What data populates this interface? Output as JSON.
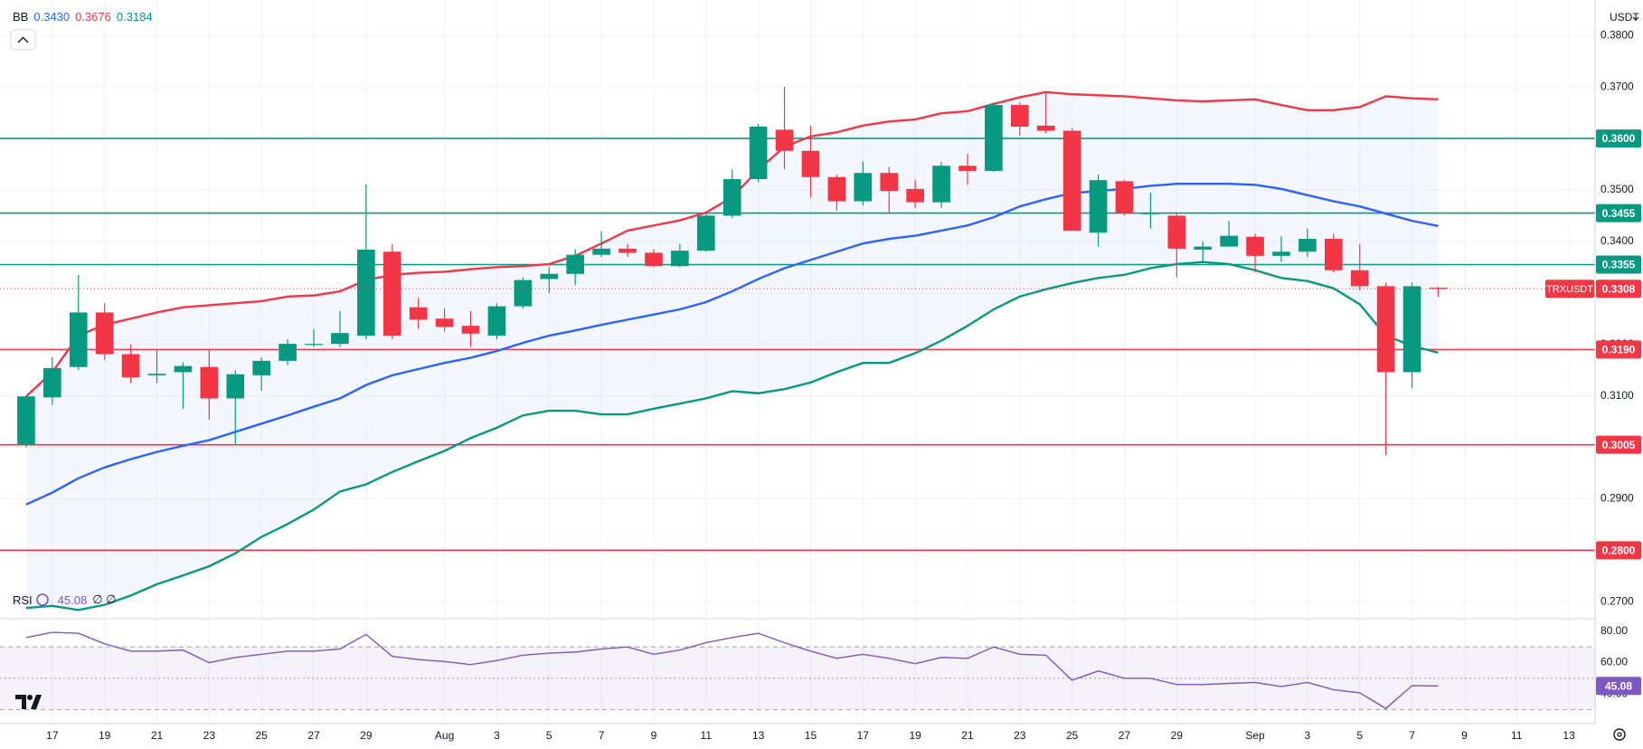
{
  "chart_data": {
    "type": "candlestick",
    "x": [
      "07-16",
      "07-17",
      "07-18",
      "07-19",
      "07-20",
      "07-21",
      "07-22",
      "07-23",
      "07-24",
      "07-25",
      "07-26",
      "07-27",
      "07-28",
      "07-29",
      "07-30",
      "07-31",
      "08-01",
      "08-02",
      "08-03",
      "08-04",
      "08-05",
      "08-06",
      "08-07",
      "08-08",
      "08-09",
      "08-10",
      "08-11",
      "08-12",
      "08-13",
      "08-14",
      "08-15",
      "08-16",
      "08-17",
      "08-18",
      "08-19",
      "08-20",
      "08-21",
      "08-22",
      "08-23",
      "08-24",
      "08-25",
      "08-26",
      "08-27",
      "08-28",
      "08-29",
      "08-30",
      "08-31",
      "09-01",
      "09-02",
      "09-03",
      "09-04",
      "09-05",
      "09-06",
      "09-07",
      "09-08"
    ],
    "open": [
      0.3005,
      0.3097,
      0.3156,
      0.3262,
      0.3181,
      0.314,
      0.3146,
      0.3156,
      0.3095,
      0.314,
      0.3168,
      0.32,
      0.3201,
      0.3217,
      0.338,
      0.3272,
      0.325,
      0.3236,
      0.3217,
      0.3274,
      0.3327,
      0.3337,
      0.3374,
      0.3386,
      0.3378,
      0.3352,
      0.3382,
      0.345,
      0.3521,
      0.3617,
      0.3576,
      0.3525,
      0.3478,
      0.3533,
      0.3502,
      0.3476,
      0.3547,
      0.3537,
      0.3665,
      0.3625,
      0.3615,
      0.3417,
      0.3517,
      0.3454,
      0.345,
      0.3384,
      0.339,
      0.3409,
      0.3372,
      0.338,
      0.3405,
      0.3344,
      0.3313,
      0.3146,
      0.331
    ],
    "high": [
      0.31,
      0.3175,
      0.3335,
      0.328,
      0.32,
      0.319,
      0.3165,
      0.319,
      0.315,
      0.3175,
      0.321,
      0.323,
      0.3265,
      0.3511,
      0.3395,
      0.329,
      0.327,
      0.3265,
      0.328,
      0.333,
      0.335,
      0.3385,
      0.342,
      0.3395,
      0.3385,
      0.3395,
      0.3455,
      0.354,
      0.3628,
      0.37,
      0.3625,
      0.353,
      0.3555,
      0.3545,
      0.352,
      0.3555,
      0.357,
      0.367,
      0.367,
      0.369,
      0.362,
      0.353,
      0.352,
      0.3495,
      0.3455,
      0.34,
      0.344,
      0.3415,
      0.341,
      0.3425,
      0.3415,
      0.3395,
      0.332,
      0.332,
      0.3312
    ],
    "low": [
      0.3,
      0.3082,
      0.315,
      0.317,
      0.3125,
      0.3125,
      0.3075,
      0.3054,
      0.3005,
      0.311,
      0.316,
      0.3195,
      0.3195,
      0.321,
      0.321,
      0.323,
      0.3225,
      0.3195,
      0.321,
      0.327,
      0.33,
      0.3315,
      0.337,
      0.337,
      0.335,
      0.335,
      0.338,
      0.3445,
      0.3515,
      0.354,
      0.3485,
      0.346,
      0.347,
      0.3455,
      0.3465,
      0.3465,
      0.351,
      0.3535,
      0.3605,
      0.361,
      0.342,
      0.339,
      0.345,
      0.3425,
      0.333,
      0.336,
      0.339,
      0.334,
      0.336,
      0.337,
      0.334,
      0.3305,
      0.2985,
      0.3115,
      0.3292
    ],
    "close": [
      0.3099,
      0.3154,
      0.3262,
      0.3181,
      0.3136,
      0.3143,
      0.3158,
      0.3095,
      0.3142,
      0.3168,
      0.3201,
      0.3201,
      0.3222,
      0.3384,
      0.3217,
      0.3248,
      0.3234,
      0.3221,
      0.3274,
      0.3325,
      0.3337,
      0.3374,
      0.3386,
      0.3378,
      0.3352,
      0.3382,
      0.345,
      0.3521,
      0.3623,
      0.3576,
      0.3525,
      0.3478,
      0.3533,
      0.3498,
      0.3476,
      0.3547,
      0.3537,
      0.3665,
      0.3623,
      0.3615,
      0.3421,
      0.3519,
      0.3454,
      0.3455,
      0.3386,
      0.339,
      0.3411,
      0.3372,
      0.338,
      0.3405,
      0.3344,
      0.3313,
      0.3146,
      0.3313,
      0.3308
    ],
    "up_color": "#089981",
    "down_color": "#f23645",
    "xlim": [
      "07-15",
      "09-14"
    ],
    "xticks": [
      {
        "value": "07-17",
        "label": "17"
      },
      {
        "value": "07-19",
        "label": "19"
      },
      {
        "value": "07-21",
        "label": "21"
      },
      {
        "value": "07-23",
        "label": "23"
      },
      {
        "value": "07-25",
        "label": "25"
      },
      {
        "value": "07-27",
        "label": "27"
      },
      {
        "value": "07-29",
        "label": "29"
      },
      {
        "value": "08-01",
        "label": "Aug"
      },
      {
        "value": "08-03",
        "label": "3"
      },
      {
        "value": "08-05",
        "label": "5"
      },
      {
        "value": "08-07",
        "label": "7"
      },
      {
        "value": "08-09",
        "label": "9"
      },
      {
        "value": "08-11",
        "label": "11"
      },
      {
        "value": "08-13",
        "label": "13"
      },
      {
        "value": "08-15",
        "label": "15"
      },
      {
        "value": "08-17",
        "label": "17"
      },
      {
        "value": "08-19",
        "label": "19"
      },
      {
        "value": "08-21",
        "label": "21"
      },
      {
        "value": "08-23",
        "label": "23"
      },
      {
        "value": "08-25",
        "label": "25"
      },
      {
        "value": "08-27",
        "label": "27"
      },
      {
        "value": "08-29",
        "label": "29"
      },
      {
        "value": "09-01",
        "label": "Sep"
      },
      {
        "value": "09-03",
        "label": "3"
      },
      {
        "value": "09-05",
        "label": "5"
      },
      {
        "value": "09-07",
        "label": "7"
      },
      {
        "value": "09-09",
        "label": "9"
      },
      {
        "value": "09-11",
        "label": "11"
      },
      {
        "value": "09-13",
        "label": "13"
      }
    ],
    "ylim": [
      0.2667,
      0.3869
    ],
    "yticks": [
      {
        "value": 0.27,
        "label": "0.2700"
      },
      {
        "value": 0.28,
        "label": "0.2800"
      },
      {
        "value": 0.29,
        "label": "0.2900"
      },
      {
        "value": 0.3,
        "label": "0.3000"
      },
      {
        "value": 0.31,
        "label": "0.3100"
      },
      {
        "value": 0.32,
        "label": "0.3200"
      },
      {
        "value": 0.33,
        "label": "0.3300"
      },
      {
        "value": 0.34,
        "label": "0.3400"
      },
      {
        "value": 0.35,
        "label": "0.3500"
      },
      {
        "value": 0.36,
        "label": "0.3600"
      },
      {
        "value": 0.37,
        "label": "0.3700"
      },
      {
        "value": 0.38,
        "label": "0.3800"
      }
    ],
    "grid": true,
    "currency": "USDT",
    "bollinger": {
      "label": "BB",
      "fill_color": "#2962ff",
      "series": [
        {
          "color": "#2962ff",
          "last_label": "0.3430",
          "values": [
            0.2889,
            0.2912,
            0.294,
            0.2961,
            0.2977,
            0.2991,
            0.3003,
            0.3014,
            0.303,
            0.3046,
            0.3062,
            0.3079,
            0.3095,
            0.3121,
            0.314,
            0.3152,
            0.3164,
            0.3174,
            0.3187,
            0.3203,
            0.3217,
            0.3227,
            0.3238,
            0.3248,
            0.3258,
            0.3268,
            0.3282,
            0.3303,
            0.3327,
            0.3348,
            0.3364,
            0.338,
            0.3396,
            0.3405,
            0.3411,
            0.3421,
            0.3431,
            0.3447,
            0.3468,
            0.3482,
            0.3494,
            0.3498,
            0.3502,
            0.3508,
            0.3512,
            0.3512,
            0.3512,
            0.351,
            0.3502,
            0.349,
            0.3478,
            0.3468,
            0.3454,
            0.344,
            0.343
          ]
        },
        {
          "color": "#f23645",
          "last_label": "0.3676",
          "values": [
            0.3099,
            0.3146,
            0.3217,
            0.3238,
            0.325,
            0.3262,
            0.3272,
            0.3276,
            0.328,
            0.3284,
            0.3293,
            0.3295,
            0.3303,
            0.3325,
            0.3335,
            0.3339,
            0.3341,
            0.3346,
            0.335,
            0.3352,
            0.3356,
            0.3372,
            0.3396,
            0.3421,
            0.3431,
            0.3441,
            0.3456,
            0.3486,
            0.3539,
            0.3584,
            0.3604,
            0.3612,
            0.3625,
            0.3633,
            0.3637,
            0.3649,
            0.3653,
            0.3667,
            0.368,
            0.369,
            0.3686,
            0.3684,
            0.3682,
            0.3678,
            0.3674,
            0.3672,
            0.3674,
            0.3676,
            0.3665,
            0.3655,
            0.3655,
            0.3661,
            0.3682,
            0.3678,
            0.3676
          ]
        },
        {
          "color": "#089981",
          "last_label": "0.3184",
          "values": [
            0.2688,
            0.2692,
            0.2684,
            0.2694,
            0.2712,
            0.2734,
            0.2751,
            0.2769,
            0.2794,
            0.2826,
            0.2851,
            0.2879,
            0.2914,
            0.2928,
            0.2952,
            0.2973,
            0.2993,
            0.3018,
            0.3038,
            0.3062,
            0.3071,
            0.3071,
            0.3064,
            0.3064,
            0.3075,
            0.3085,
            0.3095,
            0.3109,
            0.3105,
            0.3113,
            0.3126,
            0.3146,
            0.3164,
            0.3164,
            0.3183,
            0.3207,
            0.3236,
            0.3268,
            0.3293,
            0.3307,
            0.3319,
            0.3329,
            0.3335,
            0.3348,
            0.3356,
            0.336,
            0.3356,
            0.3344,
            0.3329,
            0.3323,
            0.3309,
            0.3278,
            0.3217,
            0.3197,
            0.3184
          ]
        }
      ]
    },
    "levels": [
      {
        "value": 0.36,
        "label": "0.3600",
        "color": "#089981"
      },
      {
        "value": 0.3455,
        "label": "0.3455",
        "color": "#089981"
      },
      {
        "value": 0.3355,
        "label": "0.3355",
        "color": "#089981"
      },
      {
        "value": 0.319,
        "label": "0.3190",
        "color": "#f23645"
      },
      {
        "value": 0.3005,
        "label": "0.3005",
        "color": "#f23645"
      },
      {
        "value": 0.28,
        "label": "0.2800",
        "color": "#f23645"
      }
    ],
    "last_price": {
      "value": 0.3308,
      "label": "0.3308",
      "symbol": "TRXUSDT",
      "color": "#f23645"
    },
    "rsi": {
      "label": "RSI",
      "extra": "∅ ∅",
      "color": "#7e57c2",
      "value_label": "45.08",
      "values": [
        76,
        79.3,
        78.7,
        72,
        67.3,
        67.3,
        68,
        60,
        63.3,
        65.3,
        67.3,
        67.3,
        68.7,
        78,
        64,
        62,
        60.7,
        58.7,
        61.3,
        64.7,
        66,
        66.7,
        68.7,
        70,
        65.3,
        68,
        72.7,
        76,
        78.7,
        72.7,
        67.3,
        62.7,
        65.3,
        62.7,
        59.3,
        63.3,
        62.7,
        70,
        65.3,
        64.7,
        48.7,
        54.7,
        50,
        50,
        46,
        46,
        46.7,
        47.3,
        44.7,
        47.3,
        42.7,
        40.7,
        30.7,
        45.3,
        45.08
      ],
      "ylim": [
        21,
        88
      ],
      "yticks": [
        {
          "value": 40,
          "label": "40.00"
        },
        {
          "value": 60,
          "label": "60.00"
        },
        {
          "value": 80,
          "label": "80.00"
        }
      ],
      "bands": [
        70,
        50,
        30
      ]
    }
  }
}
